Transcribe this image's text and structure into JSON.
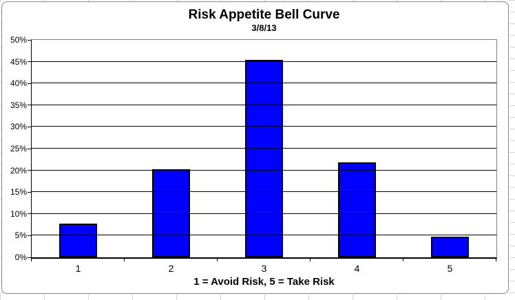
{
  "chart_data": {
    "type": "bar",
    "title": "Risk Appetite Bell Curve",
    "subtitle": "3/8/13",
    "xlabel": "1 = Avoid Risk, 5 = Take Risk",
    "ylabel": "",
    "categories": [
      "1",
      "2",
      "3",
      "4",
      "5"
    ],
    "values": [
      7.7,
      20.3,
      45.4,
      21.9,
      4.7
    ],
    "series_name": "Risk Appetite",
    "ylim": [
      0,
      50
    ],
    "ytick_step": 5,
    "yticks": [
      "0%",
      "5%",
      "10%",
      "15%",
      "20%",
      "25%",
      "30%",
      "35%",
      "40%",
      "45%",
      "50%"
    ],
    "grid": true,
    "legend_position": "none",
    "colors": {
      "bar_fill": "#0000FF",
      "bar_border": "#000000",
      "gridline": "#000000",
      "axis_line": "#000000",
      "plot_border": "#808080",
      "chart_frame_border": "#848484",
      "background": "#FFFFFF",
      "text": "#000000"
    }
  }
}
